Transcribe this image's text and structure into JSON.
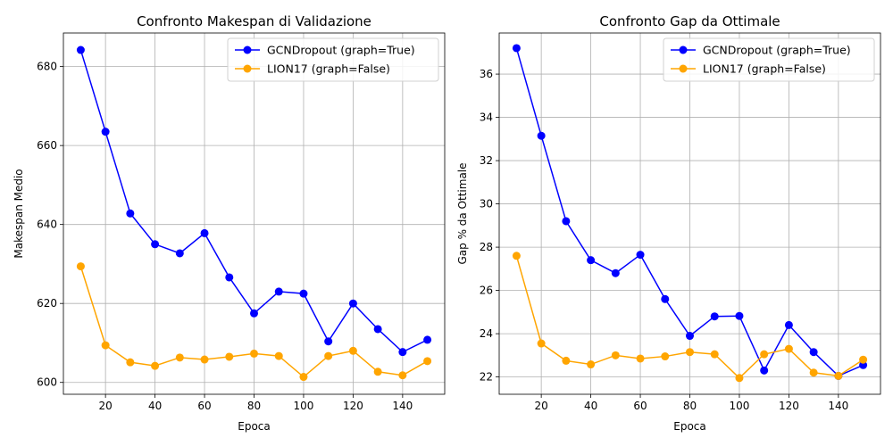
{
  "chart_data": [
    {
      "type": "line",
      "title": "Confronto Makespan di Validazione",
      "xlabel": "Epoca",
      "ylabel": "Makespan Medio",
      "xlim": [
        2.999,
        157
      ],
      "ylim": [
        597.0,
        688.5
      ],
      "xticks": [
        20,
        40,
        60,
        80,
        100,
        120,
        140
      ],
      "yticks": [
        600,
        620,
        640,
        660,
        680
      ],
      "grid": true,
      "legend_position": "top-right",
      "x": [
        10,
        20,
        30,
        40,
        50,
        60,
        70,
        80,
        90,
        100,
        110,
        120,
        130,
        140,
        150
      ],
      "series": [
        {
          "name": "GCNDropout (graph=True)",
          "color": "#0000ff",
          "values": [
            684.2,
            663.5,
            642.8,
            635.0,
            632.7,
            637.8,
            626.6,
            617.5,
            623.0,
            622.5,
            610.4,
            620.0,
            613.5,
            607.7,
            610.8
          ]
        },
        {
          "name": "LION17 (graph=False)",
          "color": "#ffa500",
          "values": [
            629.4,
            609.4,
            605.1,
            604.2,
            606.3,
            605.8,
            606.5,
            607.3,
            606.7,
            601.4,
            606.7,
            608.0,
            602.7,
            601.8,
            605.4
          ]
        }
      ]
    },
    {
      "type": "line",
      "title": "Confronto Gap da Ottimale",
      "xlabel": "Epoca",
      "ylabel": "Gap % da Ottimale",
      "xlim": [
        2.999,
        157
      ],
      "ylim": [
        21.2,
        37.9
      ],
      "xticks": [
        20,
        40,
        60,
        80,
        100,
        120,
        140
      ],
      "yticks": [
        22,
        24,
        26,
        28,
        30,
        32,
        34,
        36
      ],
      "grid": true,
      "legend_position": "top-right",
      "x": [
        10,
        20,
        30,
        40,
        50,
        60,
        70,
        80,
        90,
        100,
        110,
        120,
        130,
        140,
        150
      ],
      "series": [
        {
          "name": "GCNDropout (graph=True)",
          "color": "#0000ff",
          "values": [
            37.2,
            33.15,
            29.2,
            27.4,
            26.8,
            27.65,
            25.6,
            23.9,
            24.8,
            24.82,
            22.3,
            24.4,
            23.15,
            22.05,
            22.55
          ]
        },
        {
          "name": "LION17 (graph=False)",
          "color": "#ffa500",
          "values": [
            27.6,
            23.55,
            22.75,
            22.58,
            23.0,
            22.85,
            22.95,
            23.15,
            23.05,
            21.95,
            23.05,
            23.3,
            22.2,
            22.05,
            22.8
          ]
        }
      ]
    }
  ]
}
